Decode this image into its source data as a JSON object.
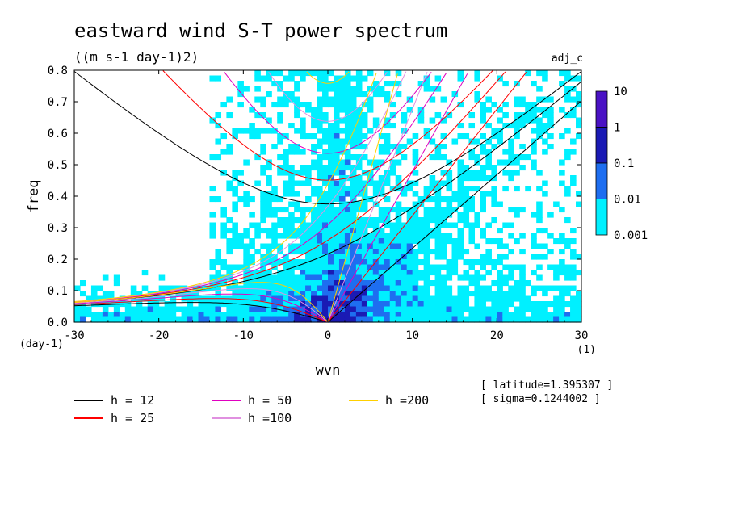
{
  "chart_data": {
    "type": "heatmap",
    "title": "eastward wind S-T power spectrum",
    "units": "((m s-1 day-1)2)",
    "tag": "adj_c",
    "xlabel": "wvn",
    "ylabel": "freq",
    "x_unit": "(1)",
    "y_unit": "(day-1)",
    "xlim": [
      -30,
      30
    ],
    "ylim": [
      0,
      0.8
    ],
    "x_ticks": [
      "-30",
      "-20",
      "-10",
      "0",
      "10",
      "20",
      "30"
    ],
    "y_ticks": [
      "0.0",
      "0.1",
      "0.2",
      "0.3",
      "0.4",
      "0.5",
      "0.6",
      "0.7",
      "0.8"
    ],
    "colorbar": {
      "levels": [
        "10",
        "1",
        "0.1",
        "0.01",
        "0.001"
      ],
      "colors": [
        "#4a12c4",
        "#1a1ab4",
        "#1e6ef0",
        "#00f0ff"
      ]
    },
    "dispersion_curves": [
      {
        "h": 12,
        "label": "h = 12",
        "color": "#000000"
      },
      {
        "h": 25,
        "label": "h = 25",
        "color": "#ff0000"
      },
      {
        "h": 50,
        "label": "h = 50",
        "color": "#e000c0"
      },
      {
        "h": 100,
        "label": "h =100",
        "color": "#e090e0"
      },
      {
        "h": 200,
        "label": "h =200",
        "color": "#ffd000"
      }
    ],
    "annotations": [
      "[ latitude=1.395307 ]",
      "[ sigma=0.1244002 ]"
    ]
  }
}
